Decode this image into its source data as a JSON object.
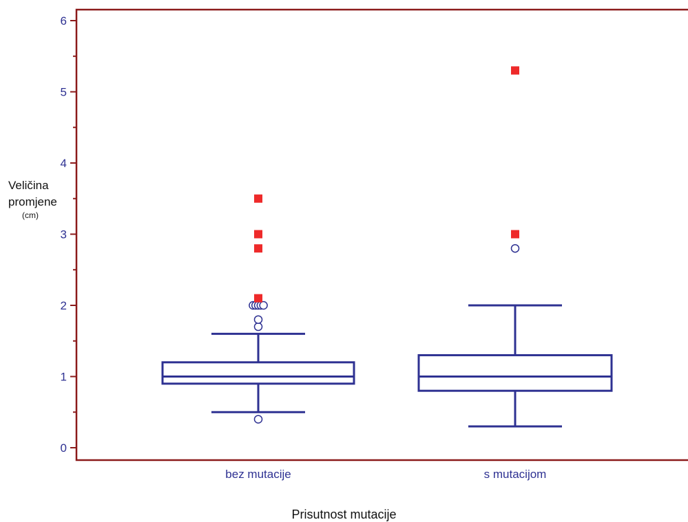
{
  "chart_data": {
    "type": "box",
    "xlabel": "Prisutnost mutacije",
    "ylabel": {
      "line1": "Veličina",
      "line2": "promjene",
      "unit": "(cm)"
    },
    "ylim": [
      0,
      6.1
    ],
    "yticks": [
      0,
      1,
      2,
      3,
      4,
      5,
      6
    ],
    "categories": [
      "bez mutacije",
      "s    mutacijom"
    ],
    "boxes": [
      {
        "category": "bez mutacije",
        "whisker_low": 0.5,
        "q1": 0.9,
        "median": 1.0,
        "q3": 1.2,
        "whisker_high": 1.6,
        "outliers_open": [
          0.4,
          1.7,
          1.8,
          2.0,
          2.0,
          2.0,
          2.0,
          2.0
        ],
        "outliers_far": [
          2.1,
          2.8,
          3.0,
          3.5
        ]
      },
      {
        "category": "s    mutacijom",
        "whisker_low": 0.3,
        "q1": 0.8,
        "median": 1.0,
        "q3": 1.3,
        "whisker_high": 2.0,
        "outliers_open": [
          2.8
        ],
        "outliers_far": [
          3.0,
          5.3
        ]
      }
    ],
    "colors": {
      "frame": "#8b1a1a",
      "box": "#2e3192",
      "far_outlier": "#ee2a2a",
      "tick_text": "#2e3192"
    },
    "grid": false
  }
}
